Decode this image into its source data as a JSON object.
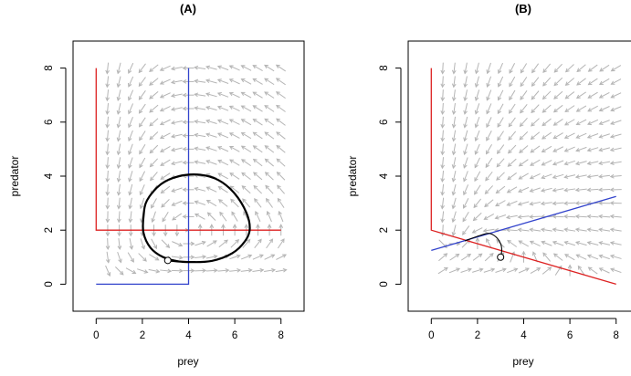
{
  "chart_data": [
    {
      "type": "vector-field",
      "title": "(A)",
      "xlabel": "prey",
      "ylabel": "predator",
      "xlim": [
        -1,
        9
      ],
      "ylim": [
        -1,
        9
      ],
      "xticks": [
        0,
        2,
        4,
        6,
        8
      ],
      "yticks": [
        0,
        2,
        4,
        6,
        8
      ],
      "grid": false,
      "field": {
        "kind": "lotka-volterra",
        "prey_nullcline_y": 2,
        "predator_nullcline_x": 4,
        "color": "#b5b5b5"
      },
      "nullclines": [
        {
          "color": "#dd2222",
          "points": [
            [
              0,
              8
            ],
            [
              0,
              2
            ],
            [
              8,
              2
            ]
          ]
        },
        {
          "color": "#3344cc",
          "points": [
            [
              0,
              0
            ],
            [
              4,
              0
            ],
            [
              4,
              8
            ]
          ]
        }
      ],
      "trajectory": {
        "color": "#000000",
        "points": [
          [
            3.1,
            0.88
          ],
          [
            4,
            0.82
          ],
          [
            5,
            0.86
          ],
          [
            5.9,
            1.15
          ],
          [
            6.45,
            1.6
          ],
          [
            6.65,
            2.05
          ],
          [
            6.5,
            2.65
          ],
          [
            6.0,
            3.35
          ],
          [
            5.3,
            3.85
          ],
          [
            4.5,
            4.05
          ],
          [
            3.6,
            4.0
          ],
          [
            2.8,
            3.7
          ],
          [
            2.2,
            3.1
          ],
          [
            2.05,
            2.5
          ],
          [
            2.05,
            1.9
          ],
          [
            2.35,
            1.35
          ],
          [
            2.9,
            1.0
          ],
          [
            3.6,
            0.84
          ],
          [
            4.3,
            0.82
          ]
        ]
      },
      "start_point": [
        3.1,
        0.88
      ]
    },
    {
      "type": "vector-field",
      "title": "(B)",
      "xlabel": "prey",
      "ylabel": "predator",
      "xlim": [
        -1,
        9
      ],
      "ylim": [
        -1,
        9
      ],
      "xticks": [
        0,
        2,
        4,
        6,
        8
      ],
      "yticks": [
        0,
        2,
        4,
        6,
        8
      ],
      "grid": false,
      "field": {
        "kind": "logistic-prey",
        "color": "#b5b5b5"
      },
      "nullclines": [
        {
          "color": "#dd2222",
          "points": [
            [
              0,
              8
            ],
            [
              0,
              2
            ],
            [
              8,
              0
            ]
          ]
        },
        {
          "color": "#3344cc",
          "points": [
            [
              0,
              1.25
            ],
            [
              8,
              3.25
            ]
          ]
        }
      ],
      "trajectory": {
        "color": "#000000",
        "points": [
          [
            3.0,
            1.0
          ],
          [
            3.05,
            1.25
          ],
          [
            3.0,
            1.5
          ],
          [
            2.8,
            1.75
          ],
          [
            2.5,
            1.88
          ],
          [
            2.1,
            1.8
          ],
          [
            1.6,
            1.65
          ],
          [
            1.45,
            1.6
          ]
        ]
      },
      "start_point": [
        3.0,
        1.0
      ]
    }
  ]
}
